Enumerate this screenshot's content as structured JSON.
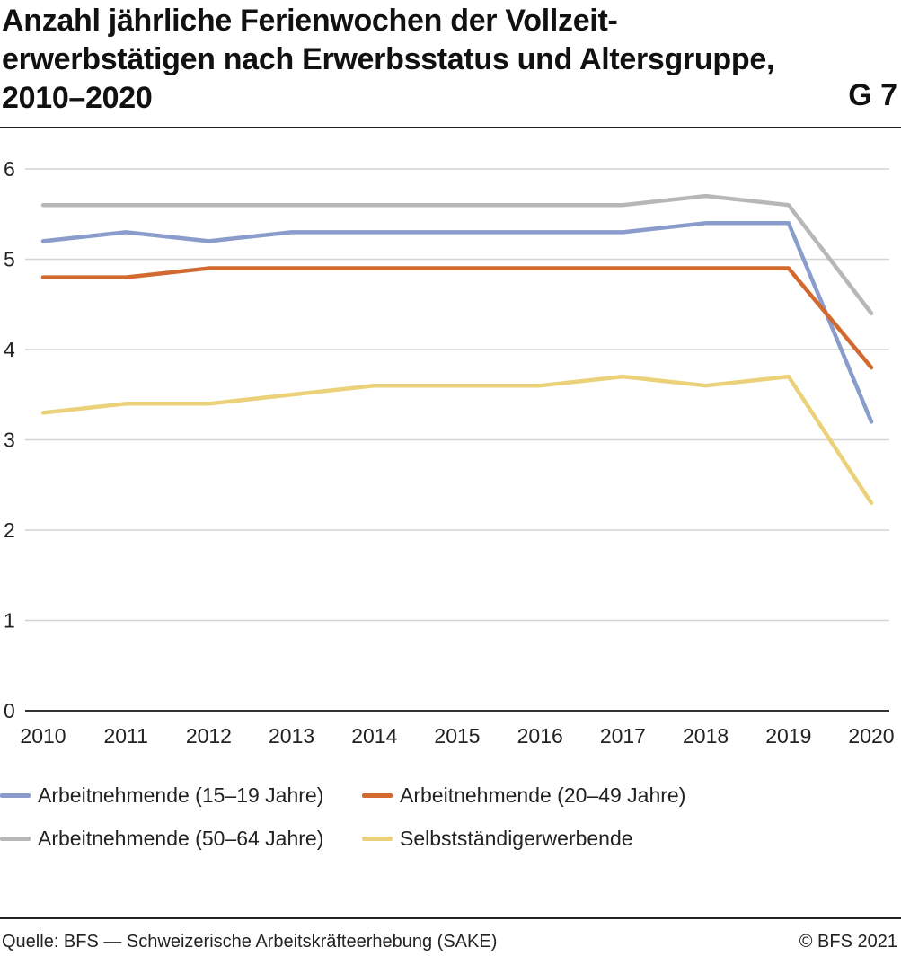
{
  "header": {
    "title_lines": [
      "Anzahl jährliche Ferienwochen der Vollzeit-",
      "erwerbstätigen nach Erwerbsstatus und Altersgruppe,",
      "2010–2020"
    ],
    "code": "G 7"
  },
  "chart_data": {
    "type": "line",
    "title": "Anzahl jährliche Ferienwochen der Vollzeiterwerbstätigen nach Erwerbsstatus und Altersgruppe, 2010–2020",
    "xlabel": "",
    "ylabel": "",
    "ylim": [
      0,
      6
    ],
    "yticks": [
      0,
      1,
      2,
      3,
      4,
      5,
      6
    ],
    "grid": "horizontal",
    "legend_position": "bottom",
    "categories": [
      "2010",
      "2011",
      "2012",
      "2013",
      "2014",
      "2015",
      "2016",
      "2017",
      "2018",
      "2019",
      "2020"
    ],
    "series": [
      {
        "name": "Arbeitnehmende (15–19 Jahre)",
        "color": "#8a9ccc",
        "values": [
          5.2,
          5.3,
          5.2,
          5.3,
          5.3,
          5.3,
          5.3,
          5.3,
          5.4,
          5.4,
          3.2
        ]
      },
      {
        "name": "Arbeitnehmende (20–49 Jahre)",
        "color": "#d2692e",
        "values": [
          4.8,
          4.8,
          4.9,
          4.9,
          4.9,
          4.9,
          4.9,
          4.9,
          4.9,
          4.9,
          3.8
        ]
      },
      {
        "name": "Arbeitnehmende (50–64 Jahre)",
        "color": "#b7b7b7",
        "values": [
          5.6,
          5.6,
          5.6,
          5.6,
          5.6,
          5.6,
          5.6,
          5.6,
          5.7,
          5.6,
          4.4
        ]
      },
      {
        "name": "Selbstständigerwerbende",
        "color": "#ebd27a",
        "values": [
          3.3,
          3.4,
          3.4,
          3.5,
          3.6,
          3.6,
          3.6,
          3.7,
          3.6,
          3.7,
          2.3
        ]
      }
    ]
  },
  "footer": {
    "source": "Quelle: BFS — Schweizerische Arbeitskräfteerhebung (SAKE)",
    "copyright": "© BFS 2021"
  }
}
